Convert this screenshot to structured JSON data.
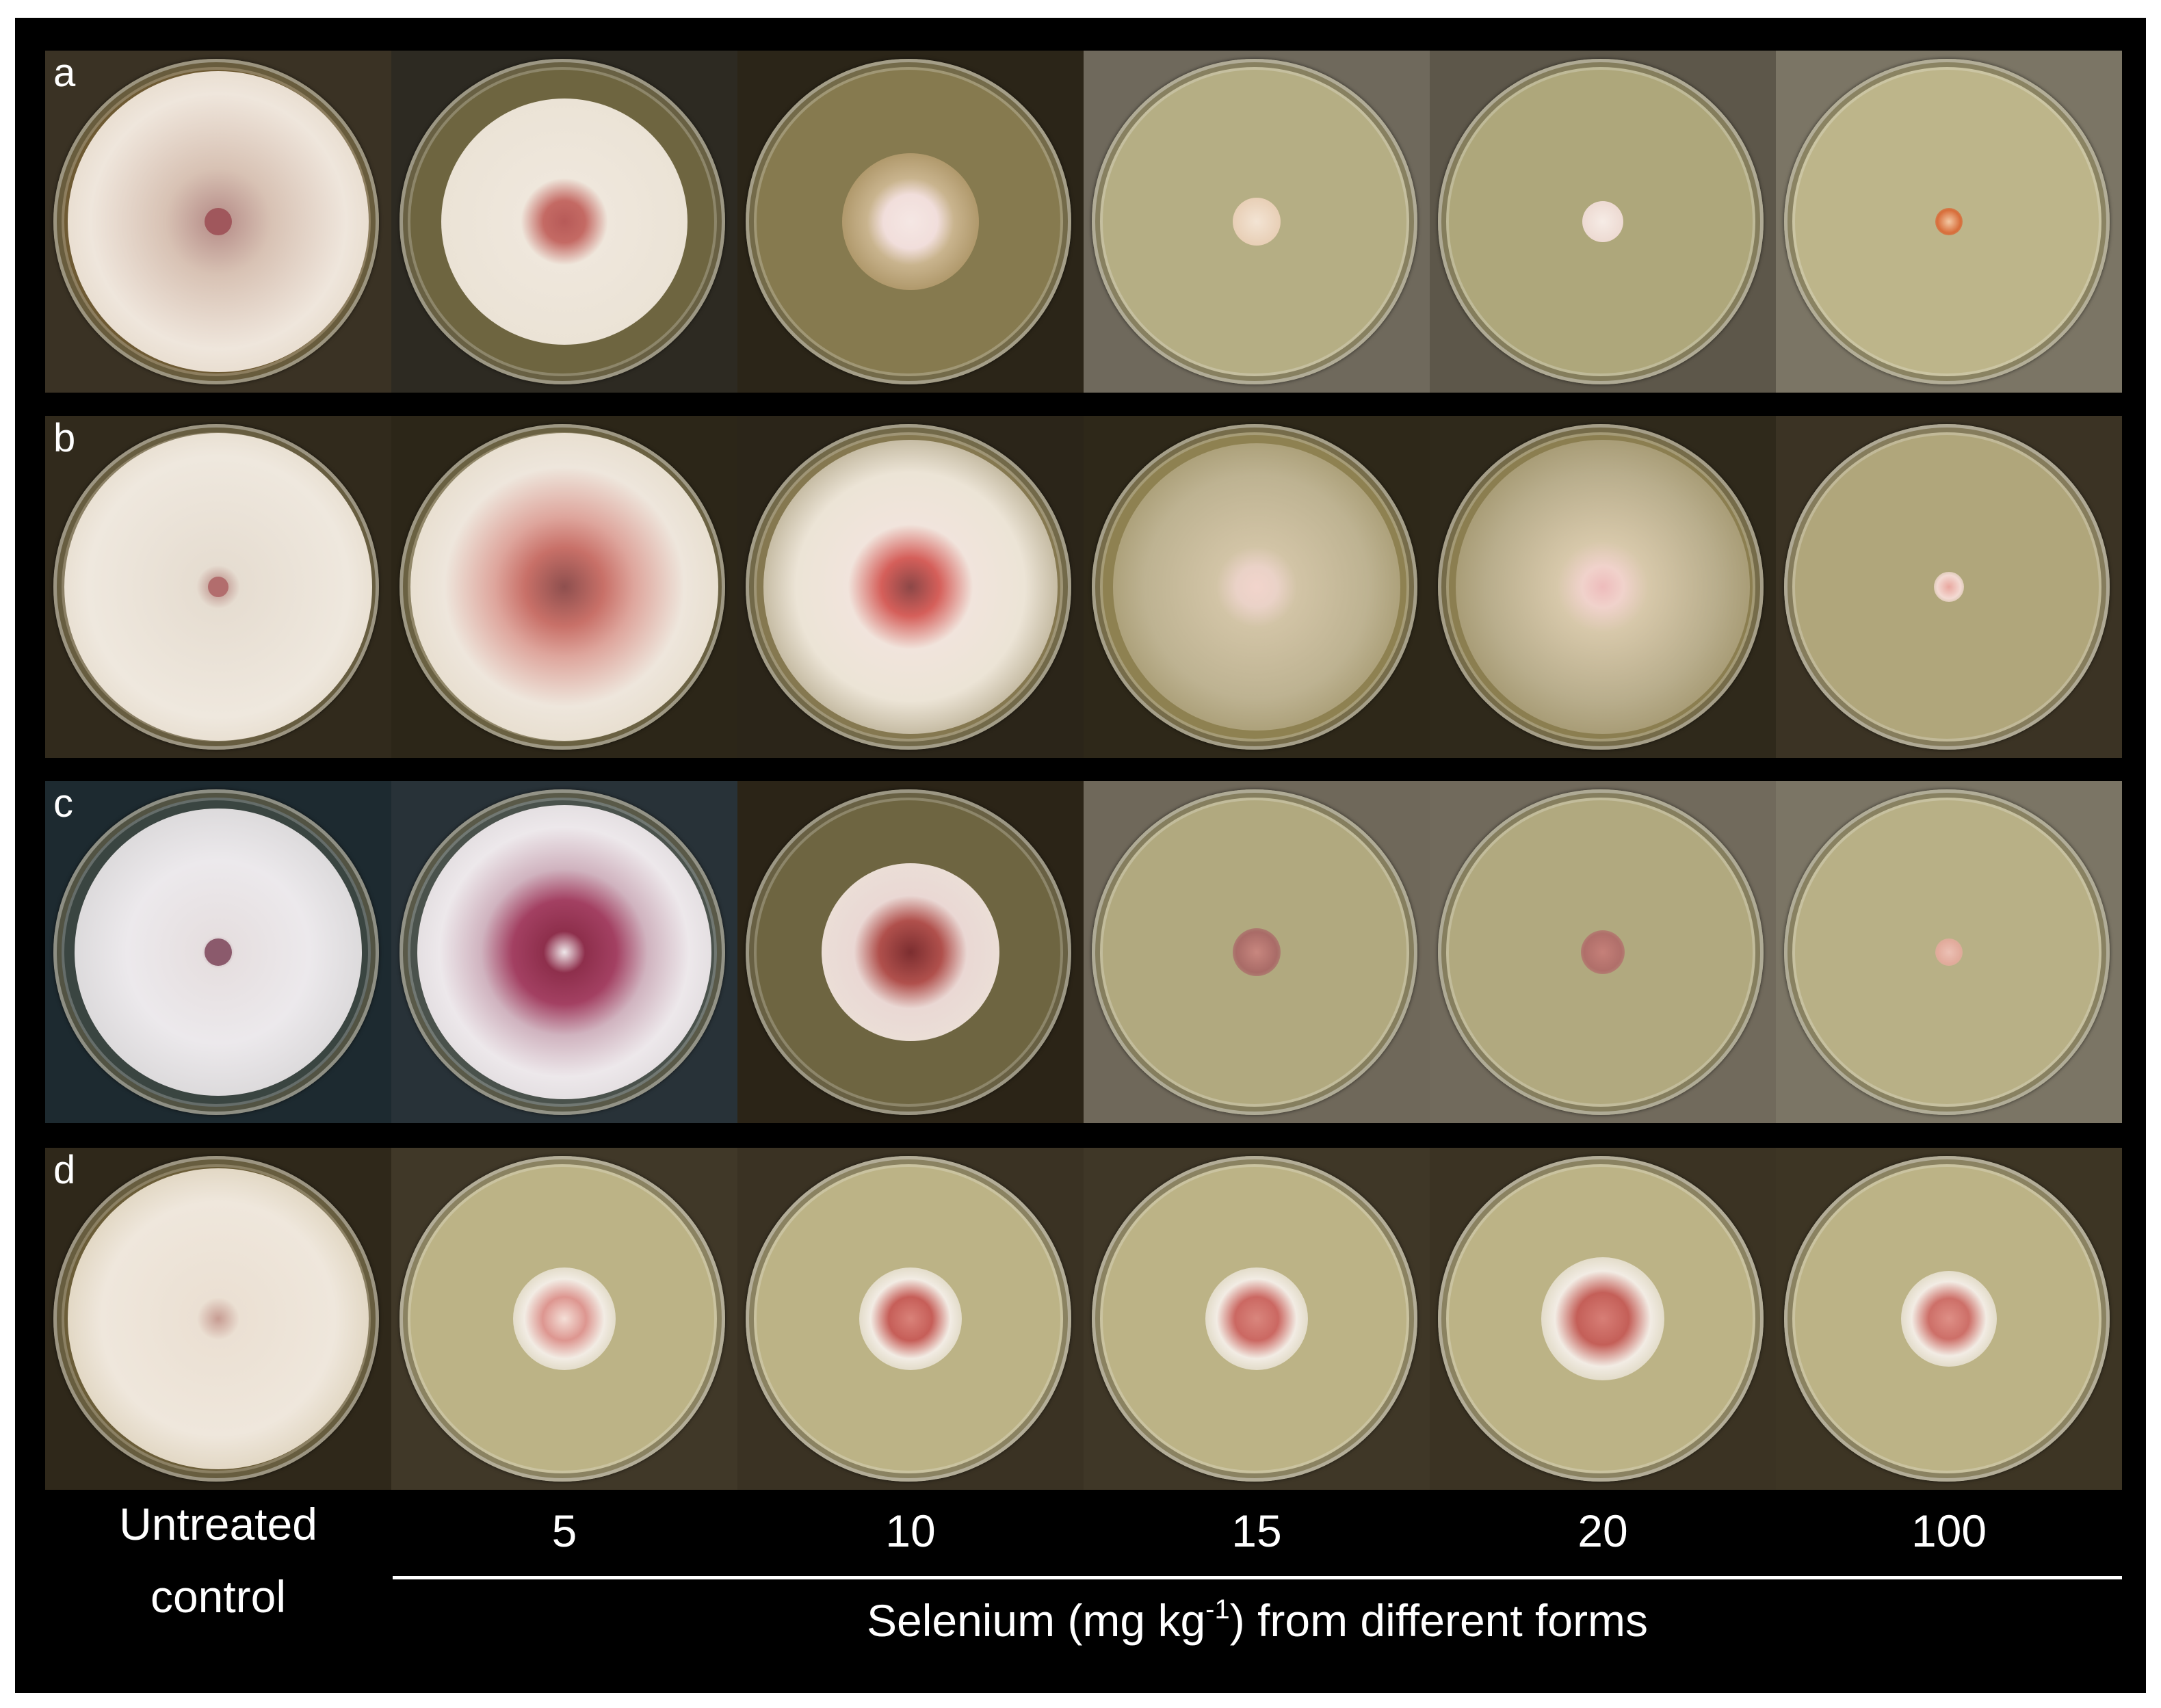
{
  "rows": [
    {
      "label": "a"
    },
    {
      "label": "b"
    },
    {
      "label": "c"
    },
    {
      "label": "d"
    }
  ],
  "columns": {
    "control": "Untreated control",
    "doses": [
      "5",
      "10",
      "15",
      "20",
      "100"
    ]
  },
  "axis_title": {
    "pre": "Selenium (mg kg",
    "sup": "-1",
    "post": ") from different forms"
  }
}
